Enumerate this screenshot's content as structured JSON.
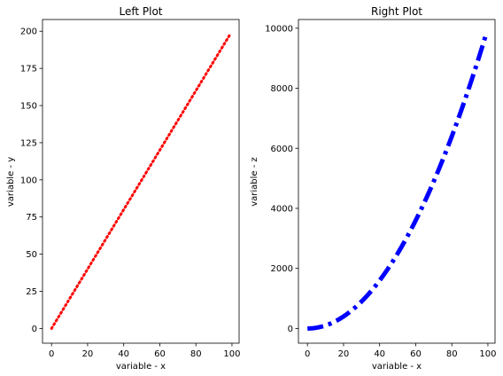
{
  "chart_data": [
    {
      "type": "line",
      "title": "Left Plot",
      "xlabel": "variable - x",
      "ylabel": "variable - y",
      "xlim": [
        -5,
        103.95
      ],
      "ylim": [
        -9.9,
        207.9
      ],
      "xticks": [
        0,
        20,
        40,
        60,
        80,
        100
      ],
      "yticks": [
        0,
        25,
        50,
        75,
        100,
        125,
        150,
        175,
        200
      ],
      "grid": false,
      "series": [
        {
          "color": "#ff0000",
          "linestyle": "dotted",
          "x": [
            0,
            99
          ],
          "y": [
            0,
            198
          ]
        }
      ]
    },
    {
      "type": "line",
      "title": "Right Plot",
      "xlabel": "variable - x",
      "ylabel": "variable - z",
      "xlim": [
        -5,
        103.95
      ],
      "ylim": [
        -490,
        10290
      ],
      "xticks": [
        0,
        20,
        40,
        60,
        80,
        100
      ],
      "yticks": [
        0,
        2000,
        4000,
        6000,
        8000,
        10000
      ],
      "grid": false,
      "series": [
        {
          "color": "#0000ff",
          "linestyle": "dashdot",
          "function": "x^2",
          "x_range": [
            0,
            99
          ],
          "y_range": [
            0,
            9801
          ]
        }
      ]
    }
  ]
}
